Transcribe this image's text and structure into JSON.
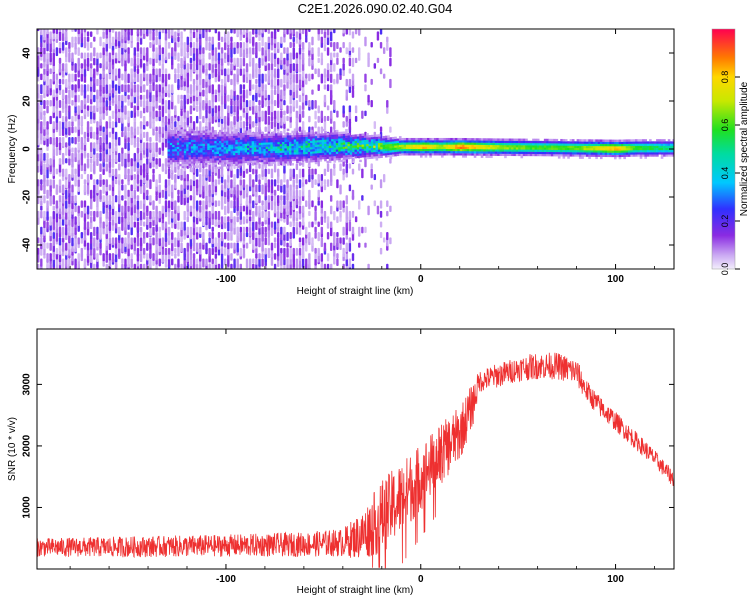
{
  "title": "C2E1.2026.090.02.40.G04",
  "chart_data": [
    {
      "type": "heatmap",
      "xlabel": "Height of straight line (km)",
      "ylabel": "Frequency (Hz)",
      "xlim": [
        -197,
        130
      ],
      "ylim": [
        -50,
        50
      ],
      "xticks": [
        -100,
        0,
        100
      ],
      "xtick_labels": [
        "-100",
        "0",
        "100"
      ],
      "yticks": [
        -40,
        -20,
        0,
        20,
        40
      ],
      "ytick_labels": [
        "-40",
        "-20",
        "0",
        "20",
        "40"
      ],
      "grid": false,
      "colorbar": {
        "label": "Normalized spectral amplitude",
        "range": [
          0,
          1
        ],
        "ticks": [
          0.0,
          0.2,
          0.4,
          0.6,
          0.8
        ],
        "tick_labels": [
          "0.0",
          "0.2",
          "0.4",
          "0.6",
          "0.8"
        ]
      },
      "ridge": {
        "x": [
          -130,
          -100,
          -80,
          -60,
          -40,
          -30,
          -20,
          -10,
          0,
          10,
          20,
          40,
          60,
          80,
          100,
          110,
          130
        ],
        "center_hz": [
          0,
          0,
          0,
          0.5,
          0.8,
          0.8,
          0.5,
          0.5,
          0.5,
          0.5,
          0.5,
          0.3,
          0.2,
          0.0,
          -0.2,
          0.0,
          0.0
        ],
        "width_hz": [
          10,
          9,
          8,
          8,
          7,
          6,
          5,
          4,
          4,
          4,
          4,
          4,
          4,
          4,
          4,
          4,
          4
        ],
        "peak": [
          0.3,
          0.35,
          0.4,
          0.45,
          0.5,
          0.55,
          0.6,
          0.7,
          0.85,
          0.7,
          0.9,
          0.7,
          0.6,
          0.65,
          0.85,
          0.6,
          0.5
        ]
      }
    },
    {
      "type": "line",
      "xlabel": "Height of straight line (km)",
      "ylabel": "SNR (10 * v/v)",
      "xlim": [
        -197,
        130
      ],
      "ylim": [
        0,
        3900
      ],
      "xticks": [
        -100,
        0,
        100
      ],
      "xtick_labels": [
        "-100",
        "0",
        "100"
      ],
      "yticks": [
        1000,
        2000,
        3000
      ],
      "ytick_labels": [
        "1000",
        "2000",
        "3000"
      ],
      "color": "#ee3030",
      "grid": false,
      "envelope": {
        "x": [
          -197,
          -150,
          -100,
          -60,
          -40,
          -30,
          -20,
          -10,
          0,
          10,
          20,
          27,
          30,
          40,
          50,
          60,
          70,
          80,
          85,
          90,
          100,
          110,
          120,
          130
        ],
        "mean": [
          350,
          360,
          380,
          400,
          430,
          550,
          850,
          1150,
          1500,
          1850,
          2200,
          2700,
          3050,
          3150,
          3250,
          3300,
          3300,
          3200,
          2900,
          2700,
          2400,
          2100,
          1800,
          1450
        ],
        "spread": [
          150,
          170,
          180,
          200,
          230,
          400,
          600,
          600,
          550,
          500,
          450,
          350,
          180,
          200,
          200,
          220,
          220,
          220,
          180,
          180,
          160,
          150,
          140,
          130
        ]
      }
    }
  ]
}
